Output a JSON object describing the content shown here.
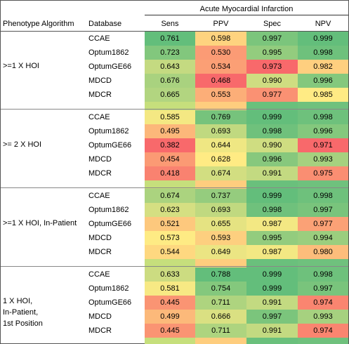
{
  "header": {
    "outcome": "Acute Myocardial Infarction",
    "algorithm": "Phenotype Algorithm",
    "database": "Database",
    "metrics": [
      "Sens",
      "PPV",
      "Spec",
      "NPV"
    ]
  },
  "groups": [
    {
      "algorithm_lines": [
        ">=1 X HOI"
      ],
      "rows": [
        {
          "db": "CCAE",
          "values": [
            "0.761",
            "0.598",
            "0.997",
            "0.999"
          ]
        },
        {
          "db": "Optum1862",
          "values": [
            "0.723",
            "0.530",
            "0.995",
            "0.998"
          ]
        },
        {
          "db": "OptumGE66",
          "values": [
            "0.643",
            "0.534",
            "0.973",
            "0.982"
          ]
        },
        {
          "db": "MDCD",
          "values": [
            "0.676",
            "0.468",
            "0.990",
            "0.996"
          ]
        },
        {
          "db": "MDCR",
          "values": [
            "0.665",
            "0.553",
            "0.977",
            "0.985"
          ]
        }
      ]
    },
    {
      "algorithm_lines": [
        ">= 2 X HOI"
      ],
      "rows": [
        {
          "db": "CCAE",
          "values": [
            "0.585",
            "0.769",
            "0.999",
            "0.998"
          ]
        },
        {
          "db": "Optum1862",
          "values": [
            "0.495",
            "0.693",
            "0.998",
            "0.996"
          ]
        },
        {
          "db": "OptumGE66",
          "values": [
            "0.382",
            "0.644",
            "0.990",
            "0.971"
          ]
        },
        {
          "db": "MDCD",
          "values": [
            "0.454",
            "0.628",
            "0.996",
            "0.993"
          ]
        },
        {
          "db": "MDCR",
          "values": [
            "0.418",
            "0.674",
            "0.991",
            "0.975"
          ]
        }
      ]
    },
    {
      "algorithm_lines": [
        ">=1 X HOI, In-Patient"
      ],
      "rows": [
        {
          "db": "CCAE",
          "values": [
            "0.674",
            "0.737",
            "0.999",
            "0.998"
          ]
        },
        {
          "db": "Optum1862",
          "values": [
            "0.623",
            "0.693",
            "0.998",
            "0.997"
          ]
        },
        {
          "db": "OptumGE66",
          "values": [
            "0.521",
            "0.655",
            "0.987",
            "0.977"
          ]
        },
        {
          "db": "MDCD",
          "values": [
            "0.573",
            "0.593",
            "0.995",
            "0.994"
          ]
        },
        {
          "db": "MDCR",
          "values": [
            "0.544",
            "0.649",
            "0.987",
            "0.980"
          ]
        }
      ]
    },
    {
      "algorithm_lines": [
        "1 X HOI,",
        "In-Patient,",
        "1st Position"
      ],
      "rows": [
        {
          "db": "CCAE",
          "values": [
            "0.633",
            "0.788",
            "0.999",
            "0.998"
          ]
        },
        {
          "db": "Optum1862",
          "values": [
            "0.581",
            "0.754",
            "0.999",
            "0.997"
          ]
        },
        {
          "db": "OptumGE66",
          "values": [
            "0.445",
            "0.711",
            "0.991",
            "0.974"
          ]
        },
        {
          "db": "MDCD",
          "values": [
            "0.499",
            "0.666",
            "0.997",
            "0.993"
          ]
        },
        {
          "db": "MDCR",
          "values": [
            "0.445",
            "0.711",
            "0.991",
            "0.974"
          ]
        }
      ]
    }
  ],
  "colors": {
    "low": "#f8696b",
    "mid": "#ffeb84",
    "high": "#63be7b",
    "column_gaps": [
      "#c6df7c",
      "#fecd7e",
      "#6ac07c",
      "#6fc17d"
    ]
  }
}
